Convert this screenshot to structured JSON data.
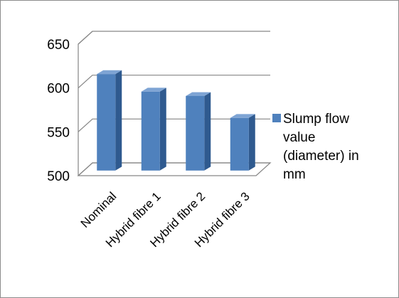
{
  "chart_data": {
    "type": "bar",
    "title": "",
    "xlabel": "",
    "ylabel": "",
    "categories": [
      "Nominal",
      "Hybrid fibre 1",
      "Hybrid fibre 2",
      "Hybrid fibre 3"
    ],
    "series": [
      {
        "name": "Slump flow value (diameter) in mm",
        "values": [
          610,
          590,
          585,
          560
        ],
        "color": "#4f81bd"
      }
    ],
    "ylim": [
      500,
      650
    ],
    "yticks": [
      500,
      550,
      600,
      650
    ],
    "grid": true,
    "legend": "right",
    "legend_lines": [
      "Slump flow",
      "value",
      "(diameter) in",
      "mm"
    ],
    "style": "3d-column"
  }
}
